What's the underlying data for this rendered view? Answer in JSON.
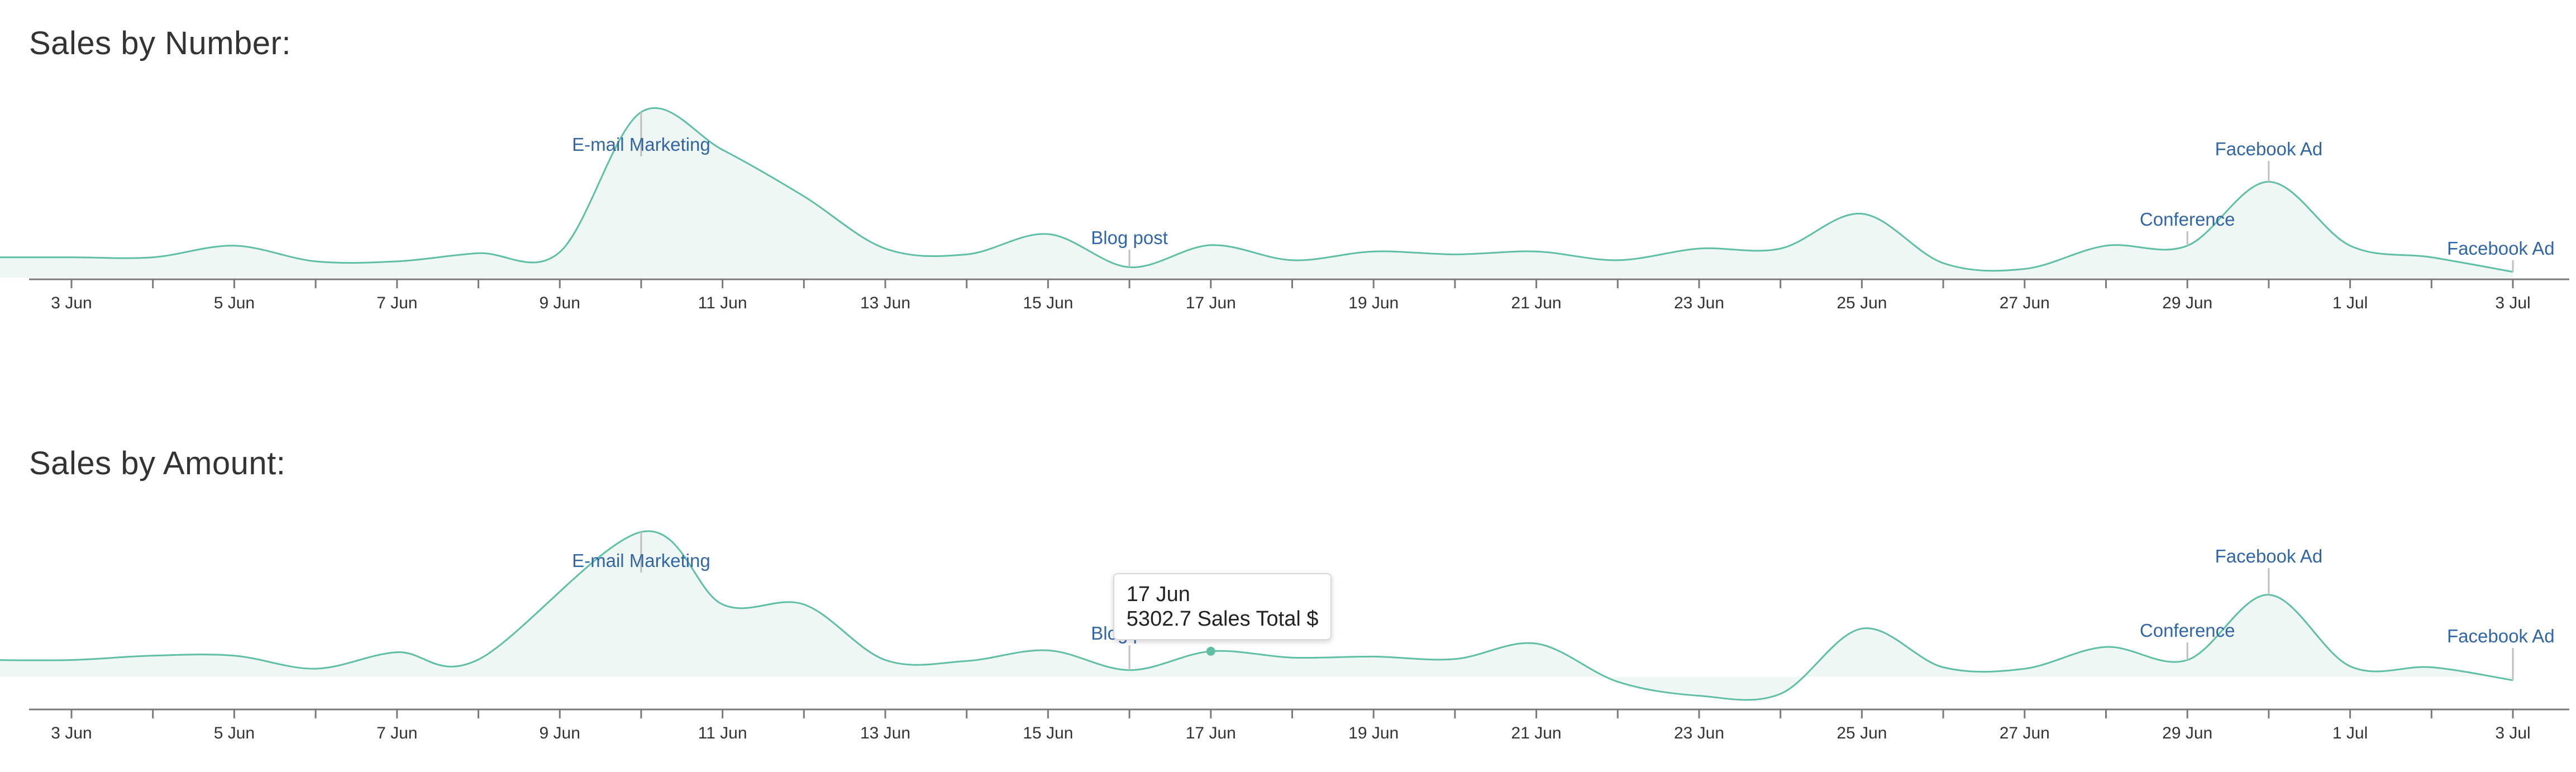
{
  "chart_data": [
    {
      "type": "area",
      "title": "Sales by Number:",
      "x": [
        "2 Jun",
        "3 Jun",
        "4 Jun",
        "5 Jun",
        "6 Jun",
        "7 Jun",
        "8 Jun",
        "9 Jun",
        "10 Jun",
        "11 Jun",
        "12 Jun",
        "13 Jun",
        "14 Jun",
        "15 Jun",
        "16 Jun",
        "17 Jun",
        "18 Jun",
        "19 Jun",
        "20 Jun",
        "21 Jun",
        "22 Jun",
        "23 Jun",
        "24 Jun",
        "25 Jun",
        "26 Jun",
        "27 Jun",
        "28 Jun",
        "29 Jun",
        "30 Jun",
        "1 Jul",
        "2 Jul",
        "3 Jul"
      ],
      "values": [
        3.5,
        3.5,
        3.5,
        5.5,
        2.8,
        2.8,
        4.2,
        4.4,
        28.5,
        22.0,
        14.0,
        5.0,
        4.0,
        7.5,
        1.8,
        5.6,
        3.0,
        4.5,
        4.0,
        4.5,
        3.0,
        5.0,
        5.0,
        11.0,
        2.5,
        1.5,
        5.5,
        5.5,
        16.5,
        5.5,
        3.5,
        1.0
      ],
      "ylim": [
        0,
        30
      ],
      "x_ticks": [
        "3 Jun",
        "5 Jun",
        "7 Jun",
        "9 Jun",
        "11 Jun",
        "13 Jun",
        "15 Jun",
        "17 Jun",
        "19 Jun",
        "21 Jun",
        "23 Jun",
        "25 Jun",
        "27 Jun",
        "29 Jun",
        "1 Jul",
        "3 Jul"
      ],
      "annotations": [
        {
          "x": "10 Jun",
          "label": "E-mail Marketing"
        },
        {
          "x": "16 Jun",
          "label": "Blog post"
        },
        {
          "x": "29 Jun",
          "label": "Conference"
        },
        {
          "x": "30 Jun",
          "label": "Facebook Ad"
        },
        {
          "x": "3 Jul",
          "label": "Facebook Ad"
        }
      ],
      "grid": false,
      "legend": "none"
    },
    {
      "type": "area",
      "title": "Sales by Amount:",
      "x": [
        "2 Jun",
        "3 Jun",
        "4 Jun",
        "5 Jun",
        "6 Jun",
        "7 Jun",
        "8 Jun",
        "9 Jun",
        "10 Jun",
        "11 Jun",
        "12 Jun",
        "13 Jun",
        "14 Jun",
        "15 Jun",
        "16 Jun",
        "17 Jun",
        "18 Jun",
        "19 Jun",
        "20 Jun",
        "21 Jun",
        "22 Jun",
        "23 Jun",
        "24 Jun",
        "25 Jun",
        "26 Jun",
        "27 Jun",
        "28 Jun",
        "29 Jun",
        "30 Jun",
        "1 Jul",
        "2 Jul",
        "3 Jul"
      ],
      "values": [
        3500,
        3500,
        4400,
        4400,
        1700,
        5100,
        3600,
        30000,
        15000,
        15000,
        3500,
        3300,
        5500,
        1400,
        5302.7,
        4000,
        4200,
        3700,
        6900,
        -1000,
        -3900,
        -3500,
        10000,
        2000,
        1700,
        6200,
        3500,
        17000,
        2200,
        2000,
        -700
      ],
      "x_values": [
        "2 Jun",
        "3 Jun",
        "4 Jun",
        "5 Jun",
        "6 Jun",
        "7 Jun",
        "8 Jun",
        "10 Jun",
        "11 Jun",
        "12 Jun",
        "13 Jun",
        "14 Jun",
        "15 Jun",
        "16 Jun",
        "17 Jun",
        "18 Jun",
        "19 Jun",
        "20 Jun",
        "21 Jun",
        "22 Jun",
        "23 Jun",
        "24 Jun",
        "25 Jun",
        "26 Jun",
        "27 Jun",
        "28 Jun",
        "29 Jun",
        "30 Jun",
        "1 Jul",
        "2 Jul",
        "3 Jul"
      ],
      "ylim": [
        -5000,
        32000
      ],
      "x_ticks": [
        "3 Jun",
        "5 Jun",
        "7 Jun",
        "9 Jun",
        "11 Jun",
        "13 Jun",
        "15 Jun",
        "17 Jun",
        "19 Jun",
        "21 Jun",
        "23 Jun",
        "25 Jun",
        "27 Jun",
        "29 Jun",
        "1 Jul",
        "3 Jul"
      ],
      "annotations": [
        {
          "x": "10 Jun",
          "label": "E-mail Marketing"
        },
        {
          "x": "16 Jun",
          "label": "Blog post"
        },
        {
          "x": "29 Jun",
          "label": "Conference"
        },
        {
          "x": "30 Jun",
          "label": "Facebook Ad"
        },
        {
          "x": "3 Jul",
          "label": "Facebook Ad"
        }
      ],
      "tooltip": {
        "date": "17 Jun",
        "text": "5302.7 Sales Total $"
      },
      "grid": false,
      "legend": "none"
    }
  ],
  "colors": {
    "line": "#5fbfa5",
    "area": "#eef7f4",
    "annotation": "#3166a6",
    "axis": "#7a7a7a"
  }
}
